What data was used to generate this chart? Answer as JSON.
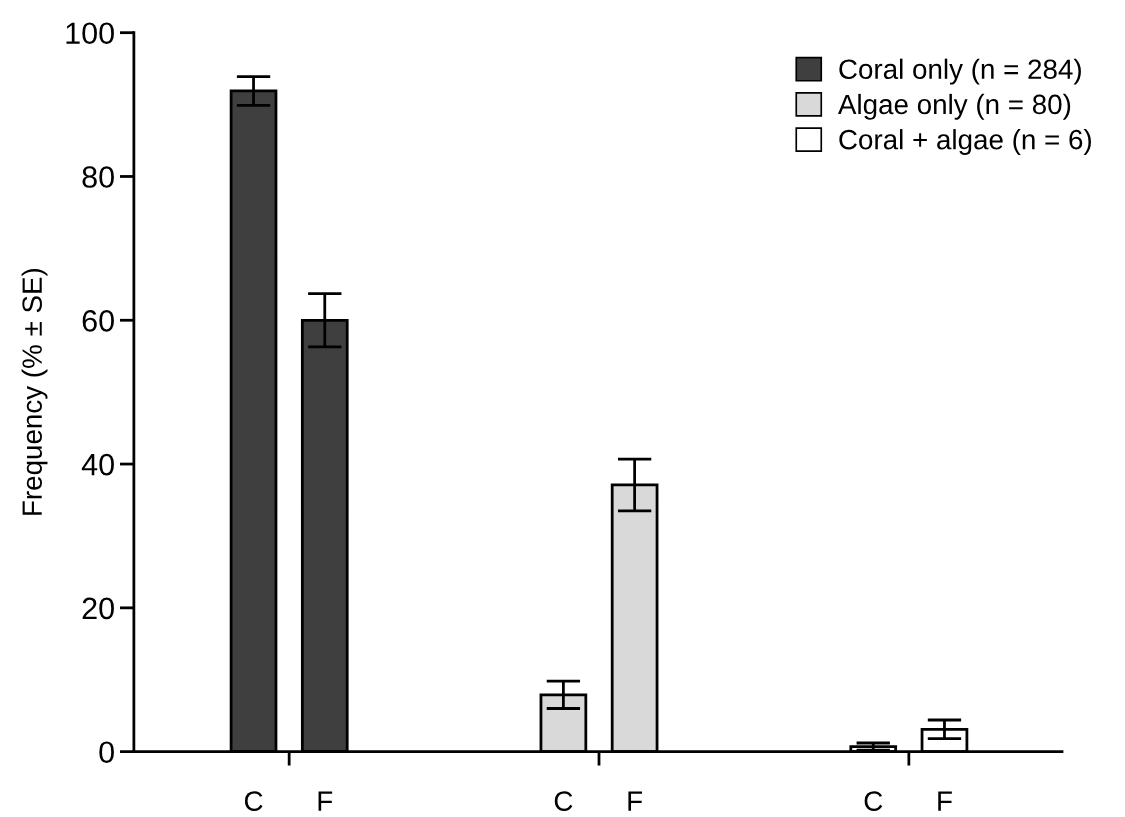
{
  "chart_data": {
    "type": "bar",
    "ylabel": "Frequency (% ± SE)",
    "categories": [
      "C",
      "F",
      "C",
      "F",
      "C",
      "F"
    ],
    "series": [
      {
        "name": "Coral only (n = 284)",
        "color": "#3f3f3f",
        "values": [
          91.9,
          60,
          null,
          null,
          null,
          null
        ],
        "errors": [
          2,
          3.7,
          null,
          null,
          null,
          null
        ]
      },
      {
        "name": "Algae only (n = 80)",
        "color": "#d9d9d9",
        "values": [
          null,
          null,
          7.9,
          37.1,
          null,
          null
        ],
        "errors": [
          null,
          null,
          1.9,
          3.6,
          null,
          null
        ]
      },
      {
        "name": "Coral + algae (n = 6)",
        "color": "#ffffff",
        "values": [
          null,
          null,
          null,
          null,
          0.7,
          3.1
        ],
        "errors": [
          null,
          null,
          null,
          null,
          0.5,
          1.3
        ]
      }
    ],
    "ylim": [
      0,
      100
    ],
    "yticks": [
      0,
      20,
      40,
      60,
      80,
      100
    ],
    "grid": false,
    "legend": "top right"
  }
}
